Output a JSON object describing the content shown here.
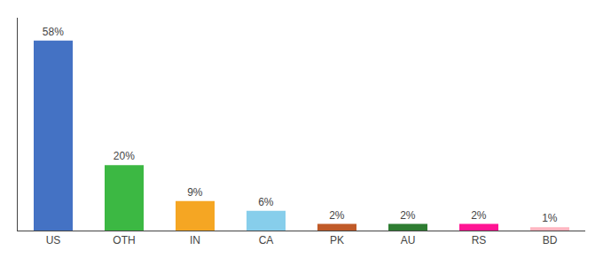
{
  "chart_data": {
    "type": "bar",
    "categories": [
      "US",
      "OTH",
      "IN",
      "CA",
      "PK",
      "AU",
      "RS",
      "BD"
    ],
    "values": [
      58,
      20,
      9,
      6,
      2,
      2,
      2,
      1
    ],
    "value_labels": [
      "58%",
      "20%",
      "9%",
      "6%",
      "2%",
      "2%",
      "2%",
      "1%"
    ],
    "colors": [
      "#4472C4",
      "#3CB843",
      "#F5A623",
      "#87CEEB",
      "#C05A28",
      "#2E7D32",
      "#FF1493",
      "#FFB6C1"
    ],
    "ylim": [
      0,
      65
    ],
    "data_labels": true,
    "tick_labels": "x",
    "grid": false
  }
}
